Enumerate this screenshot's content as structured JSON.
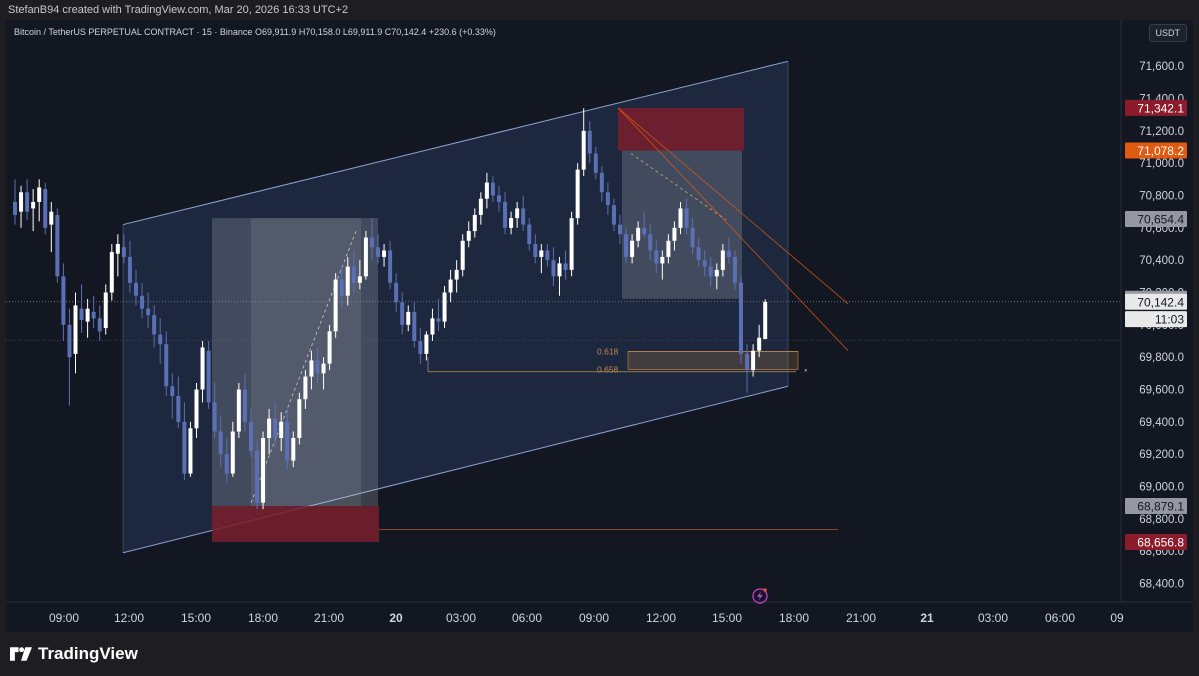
{
  "credit": "StefanB94 created with TradingView.com, Mar 20, 2026 16:33 UTC+2",
  "legend": {
    "title": "Bitcoin / TetherUS PERPETUAL CONTRACT · 15 · Binance",
    "open": "O69,911.9",
    "high": "H70,158.0",
    "low": "L69,911.9",
    "close": "C70,142.4",
    "change": "+230.6 (+0.33%)"
  },
  "currency_button": "USDT",
  "brand": "TradingView",
  "colors": {
    "background": "#131722",
    "channel": "#8aa4d6",
    "up_candle": "#ffffff",
    "down_candle": "#5b6fb5",
    "red_zone": "#7a1e2c",
    "orange": "#e05a12",
    "fib": "#c48a4a"
  },
  "chart_data": {
    "type": "candlestick",
    "symbol": "BTCUSDT.P",
    "interval": "15",
    "y_axis": {
      "min": 68250,
      "max": 71800,
      "ticks": [
        "71,600.0",
        "71,400.0",
        "71,200.0",
        "71,000.0",
        "70,800.0",
        "70,600.0",
        "70,400.0",
        "70,200.0",
        "70,000.0",
        "69,800.0",
        "69,600.0",
        "69,400.0",
        "69,200.0",
        "69,000.0",
        "68,800.0",
        "68,600.0",
        "68,400.0"
      ]
    },
    "x_axis": {
      "ticks": [
        "09:00",
        "12:00",
        "15:00",
        "18:00",
        "21:00",
        "20",
        "03:00",
        "06:00",
        "09:00",
        "12:00",
        "15:00",
        "18:00",
        "21:00",
        "21",
        "03:00",
        "06:00",
        "09"
      ]
    },
    "price_labels": [
      {
        "text": "71,342.1",
        "value": 71342.1,
        "kind": "red"
      },
      {
        "text": "71,078.2",
        "value": 71078.2,
        "kind": "orange"
      },
      {
        "text": "70,654.4",
        "value": 70654.4,
        "kind": "gray"
      },
      {
        "text": "70,161.0",
        "value": 70161.0,
        "kind": "gray"
      },
      {
        "text": "70,142.4",
        "value": 70142.4,
        "kind": "current"
      },
      {
        "text": "11:03",
        "value": 70035,
        "kind": "countdown"
      },
      {
        "text": "68,879.1",
        "value": 68879.1,
        "kind": "gray"
      },
      {
        "text": "68,656.8",
        "value": 68656.8,
        "kind": "red"
      }
    ],
    "fib_levels": [
      {
        "label": "0.618",
        "value": 69835
      },
      {
        "label": "0.658",
        "value": 69725
      }
    ],
    "candles_ohlc": [
      [
        70760,
        70900,
        70620,
        70680
      ],
      [
        70700,
        70860,
        70600,
        70820
      ],
      [
        70820,
        70900,
        70650,
        70700
      ],
      [
        70720,
        70840,
        70580,
        70760
      ],
      [
        70760,
        70900,
        70640,
        70850
      ],
      [
        70840,
        70880,
        70560,
        70600
      ],
      [
        70620,
        70760,
        70450,
        70700
      ],
      [
        70680,
        70720,
        70260,
        70300
      ],
      [
        70300,
        70380,
        69900,
        70000
      ],
      [
        70000,
        70100,
        69500,
        69800
      ],
      [
        69820,
        70200,
        69700,
        70120
      ],
      [
        70100,
        70250,
        69950,
        70030
      ],
      [
        70020,
        70160,
        69920,
        70100
      ],
      [
        70080,
        70180,
        69980,
        70040
      ],
      [
        70040,
        70120,
        69900,
        69960
      ],
      [
        69980,
        70250,
        69940,
        70200
      ],
      [
        70200,
        70500,
        70150,
        70450
      ],
      [
        70440,
        70560,
        70300,
        70500
      ],
      [
        70480,
        70560,
        70380,
        70420
      ],
      [
        70420,
        70520,
        70200,
        70260
      ],
      [
        70260,
        70340,
        70120,
        70180
      ],
      [
        70180,
        70260,
        70040,
        70100
      ],
      [
        70100,
        70200,
        69980,
        70060
      ],
      [
        70060,
        70120,
        69860,
        69940
      ],
      [
        69940,
        70040,
        69760,
        69880
      ],
      [
        69880,
        69960,
        69560,
        69620
      ],
      [
        69620,
        69700,
        69420,
        69560
      ],
      [
        69560,
        69680,
        69360,
        69400
      ],
      [
        69400,
        69520,
        69040,
        69080
      ],
      [
        69080,
        69400,
        69060,
        69360
      ],
      [
        69360,
        69640,
        69300,
        69600
      ],
      [
        69600,
        69900,
        69520,
        69860
      ],
      [
        69840,
        69900,
        69480,
        69520
      ],
      [
        69520,
        69640,
        69300,
        69340
      ],
      [
        69340,
        69440,
        69120,
        69200
      ],
      [
        69200,
        69300,
        69020,
        69080
      ],
      [
        69080,
        69400,
        69060,
        69340
      ],
      [
        69340,
        69640,
        69300,
        69600
      ],
      [
        69600,
        69700,
        69340,
        69400
      ],
      [
        69400,
        69480,
        69180,
        69220
      ],
      [
        69220,
        69280,
        68860,
        68900
      ],
      [
        68900,
        69340,
        68860,
        69300
      ],
      [
        69300,
        69480,
        69200,
        69420
      ],
      [
        69420,
        69520,
        69240,
        69300
      ],
      [
        69300,
        69460,
        69220,
        69400
      ],
      [
        69400,
        69480,
        69100,
        69160
      ],
      [
        69160,
        69340,
        69120,
        69300
      ],
      [
        69300,
        69580,
        69260,
        69540
      ],
      [
        69540,
        69720,
        69480,
        69680
      ],
      [
        69680,
        69840,
        69600,
        69780
      ],
      [
        69780,
        69860,
        69640,
        69700
      ],
      [
        69700,
        69800,
        69600,
        69760
      ],
      [
        69760,
        70000,
        69720,
        69960
      ],
      [
        69960,
        70320,
        69920,
        70280
      ],
      [
        70280,
        70360,
        70100,
        70180
      ],
      [
        70180,
        70420,
        70120,
        70360
      ],
      [
        70360,
        70460,
        70200,
        70260
      ],
      [
        70260,
        70400,
        70220,
        70300
      ],
      [
        70300,
        70580,
        70280,
        70540
      ],
      [
        70540,
        70660,
        70400,
        70480
      ],
      [
        70480,
        70560,
        70380,
        70420
      ],
      [
        70420,
        70500,
        70360,
        70460
      ],
      [
        70460,
        70520,
        70220,
        70260
      ],
      [
        70260,
        70320,
        70080,
        70140
      ],
      [
        70140,
        70200,
        69940,
        70000
      ],
      [
        70000,
        70120,
        69960,
        70080
      ],
      [
        70080,
        70140,
        69860,
        69900
      ],
      [
        69900,
        69980,
        69760,
        69820
      ],
      [
        69820,
        69960,
        69780,
        69940
      ],
      [
        69940,
        70100,
        69900,
        70040
      ],
      [
        70040,
        70160,
        69960,
        70020
      ],
      [
        70020,
        70240,
        69980,
        70200
      ],
      [
        70200,
        70340,
        70140,
        70280
      ],
      [
        70280,
        70400,
        70200,
        70340
      ],
      [
        70340,
        70560,
        70300,
        70520
      ],
      [
        70520,
        70640,
        70480,
        70580
      ],
      [
        70580,
        70720,
        70540,
        70680
      ],
      [
        70680,
        70820,
        70620,
        70780
      ],
      [
        70780,
        70940,
        70720,
        70880
      ],
      [
        70880,
        70920,
        70760,
        70800
      ],
      [
        70800,
        70860,
        70700,
        70760
      ],
      [
        70760,
        70820,
        70560,
        70600
      ],
      [
        70600,
        70700,
        70560,
        70660
      ],
      [
        70660,
        70760,
        70600,
        70720
      ],
      [
        70720,
        70800,
        70580,
        70620
      ],
      [
        70620,
        70660,
        70460,
        70500
      ],
      [
        70500,
        70560,
        70380,
        70420
      ],
      [
        70420,
        70500,
        70320,
        70460
      ],
      [
        70460,
        70500,
        70360,
        70400
      ],
      [
        70400,
        70480,
        70240,
        70300
      ],
      [
        70300,
        70420,
        70180,
        70380
      ],
      [
        70380,
        70460,
        70280,
        70340
      ],
      [
        70340,
        70700,
        70300,
        70660
      ],
      [
        70660,
        71000,
        70620,
        70960
      ],
      [
        70960,
        71340,
        70920,
        71200
      ],
      [
        71200,
        71260,
        71000,
        71060
      ],
      [
        71060,
        71100,
        70900,
        70940
      ],
      [
        70940,
        70980,
        70760,
        70820
      ],
      [
        70820,
        70880,
        70680,
        70740
      ],
      [
        70740,
        70780,
        70580,
        70620
      ],
      [
        70620,
        70680,
        70500,
        70560
      ],
      [
        70560,
        70600,
        70380,
        70420
      ],
      [
        70420,
        70560,
        70380,
        70520
      ],
      [
        70520,
        70640,
        70480,
        70600
      ],
      [
        70600,
        70700,
        70540,
        70560
      ],
      [
        70560,
        70620,
        70400,
        70460
      ],
      [
        70460,
        70520,
        70320,
        70380
      ],
      [
        70380,
        70460,
        70280,
        70420
      ],
      [
        70420,
        70560,
        70380,
        70520
      ],
      [
        70520,
        70640,
        70460,
        70600
      ],
      [
        70600,
        70760,
        70560,
        70720
      ],
      [
        70720,
        70780,
        70560,
        70600
      ],
      [
        70600,
        70660,
        70440,
        70480
      ],
      [
        70480,
        70540,
        70360,
        70400
      ],
      [
        70400,
        70460,
        70300,
        70360
      ],
      [
        70360,
        70420,
        70240,
        70300
      ],
      [
        70300,
        70380,
        70220,
        70340
      ],
      [
        70340,
        70500,
        70300,
        70460
      ],
      [
        70460,
        70540,
        70380,
        70420
      ],
      [
        70420,
        70460,
        70220,
        70260
      ],
      [
        70260,
        70300,
        69760,
        69820
      ],
      [
        69820,
        69880,
        69580,
        69720
      ],
      [
        69720,
        69880,
        69680,
        69840
      ],
      [
        69840,
        70000,
        69800,
        69920
      ],
      [
        69911.9,
        70158,
        69911.9,
        70142.4
      ]
    ]
  }
}
